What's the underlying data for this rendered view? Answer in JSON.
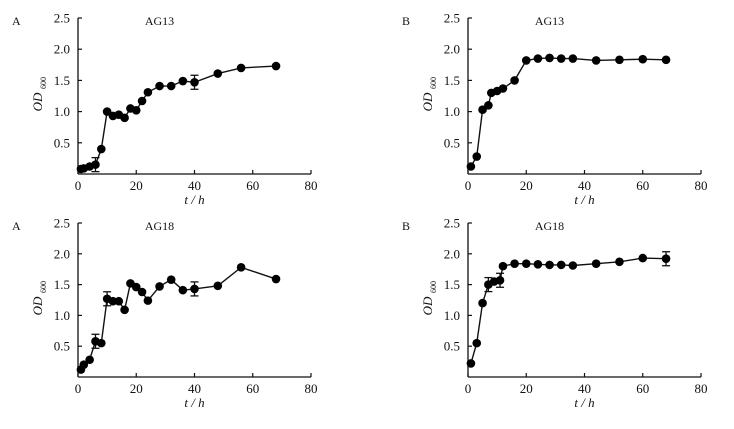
{
  "chart_data": [
    {
      "type": "line",
      "panel_label": "A",
      "title": "AG13",
      "xlabel": "t / h",
      "ylabel": "OD",
      "ylabel_sub": "600",
      "xlim": [
        0,
        80
      ],
      "ylim": [
        0,
        2.5
      ],
      "xticks": [
        "0",
        "20",
        "40",
        "60",
        "80"
      ],
      "yticks": [
        "0.5",
        "1.0",
        "1.5",
        "2.0",
        "2.5"
      ],
      "grid": false,
      "x": [
        1,
        2,
        4,
        6,
        8,
        10,
        12,
        14,
        16,
        18,
        20,
        22,
        24,
        28,
        32,
        36,
        40,
        48,
        56,
        68
      ],
      "y": [
        0.08,
        0.09,
        0.12,
        0.15,
        0.4,
        1.0,
        0.93,
        0.95,
        0.9,
        1.05,
        1.02,
        1.17,
        1.31,
        1.41,
        1.41,
        1.49,
        1.47,
        1.61,
        1.7,
        1.73
      ],
      "error_at_x": [
        6,
        40
      ]
    },
    {
      "type": "line",
      "panel_label": "B",
      "title": "AG13",
      "xlabel": "t / h",
      "ylabel": "OD",
      "ylabel_sub": "600",
      "xlim": [
        0,
        80
      ],
      "ylim": [
        0,
        2.5
      ],
      "xticks": [
        "0",
        "20",
        "40",
        "60",
        "80"
      ],
      "yticks": [
        "0.5",
        "1.0",
        "1.5",
        "2.0",
        "2.5"
      ],
      "grid": false,
      "x": [
        1,
        3,
        5,
        7,
        8,
        10,
        12,
        16,
        20,
        24,
        28,
        32,
        36,
        44,
        52,
        60,
        68
      ],
      "y": [
        0.12,
        0.28,
        1.03,
        1.1,
        1.3,
        1.33,
        1.37,
        1.5,
        1.82,
        1.85,
        1.86,
        1.85,
        1.85,
        1.82,
        1.83,
        1.84,
        1.83
      ],
      "error_at_x": []
    },
    {
      "type": "line",
      "panel_label": "A",
      "title": "AG18",
      "xlabel": "t / h",
      "ylabel": "OD",
      "ylabel_sub": "600",
      "xlim": [
        0,
        80
      ],
      "ylim": [
        0,
        2.5
      ],
      "xticks": [
        "0",
        "20",
        "40",
        "60",
        "80"
      ],
      "yticks": [
        "0.5",
        "1.0",
        "1.5",
        "2.0",
        "2.5"
      ],
      "grid": false,
      "x": [
        1,
        2,
        4,
        6,
        8,
        10,
        12,
        14,
        16,
        18,
        20,
        22,
        24,
        28,
        32,
        36,
        40,
        48,
        56,
        68
      ],
      "y": [
        0.12,
        0.2,
        0.28,
        0.58,
        0.55,
        1.27,
        1.23,
        1.23,
        1.09,
        1.52,
        1.46,
        1.38,
        1.24,
        1.47,
        1.58,
        1.41,
        1.43,
        1.48,
        1.78,
        1.59
      ],
      "error_at_x": [
        6,
        10,
        40
      ]
    },
    {
      "type": "line",
      "panel_label": "B",
      "title": "AG18",
      "xlabel": "t / h",
      "ylabel": "OD",
      "ylabel_sub": "600",
      "xlim": [
        0,
        80
      ],
      "ylim": [
        0,
        2.5
      ],
      "xticks": [
        "0",
        "20",
        "40",
        "60",
        "80"
      ],
      "yticks": [
        "0.5",
        "1.0",
        "1.5",
        "2.0",
        "2.5"
      ],
      "grid": false,
      "x": [
        1,
        3,
        5,
        7,
        9,
        11,
        12,
        16,
        20,
        24,
        28,
        32,
        36,
        44,
        52,
        60,
        68
      ],
      "y": [
        0.22,
        0.55,
        1.2,
        1.5,
        1.55,
        1.57,
        1.8,
        1.84,
        1.84,
        1.83,
        1.82,
        1.82,
        1.81,
        1.84,
        1.87,
        1.93,
        1.92
      ],
      "error_at_x": [
        7,
        11,
        68
      ]
    }
  ]
}
